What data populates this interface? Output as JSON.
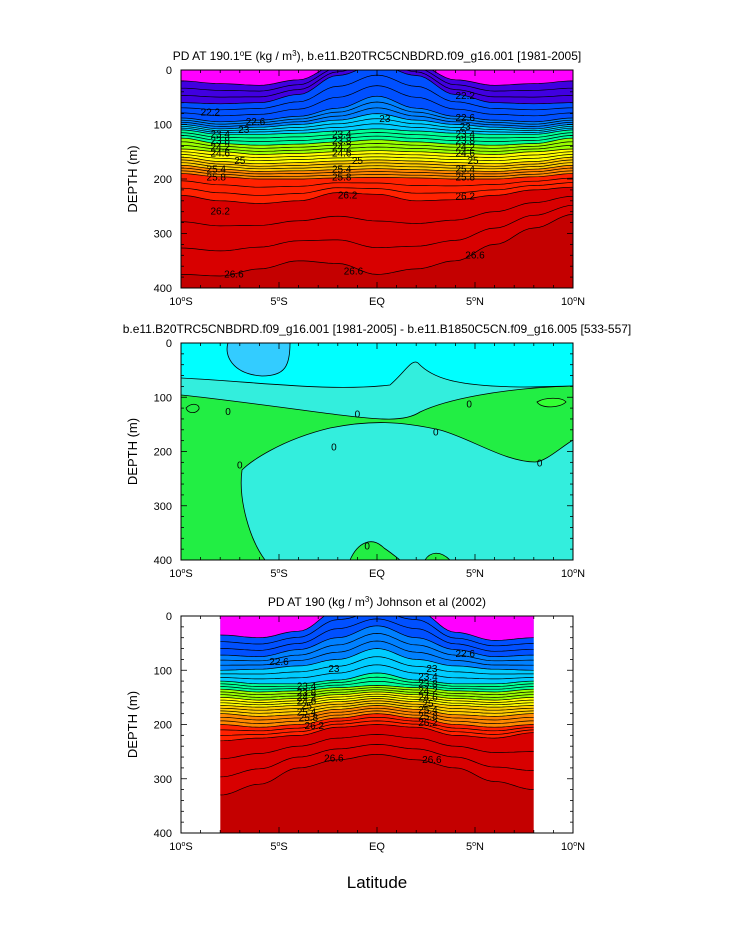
{
  "figure": {
    "xlabel": "Latitude"
  },
  "colors": {
    "frame": "#000000",
    "diff_low": "#00ffff",
    "diff_mid": "#33eedd",
    "diff_green": "#22ee44",
    "diff_light": "#33ccff"
  },
  "chart_data": [
    {
      "type": "contour",
      "title_parts": [
        "PD AT 190.1",
        "o",
        "E (kg / m",
        "3",
        "), b.e11.B20TRC5CNBDRD.f09_g16.001 [1981-2005]"
      ],
      "ylabel": "DEPTH (m)",
      "xlim": [
        -10,
        10
      ],
      "ylim": [
        0,
        400
      ],
      "data_xlim": [
        -10,
        10
      ],
      "x_ticks": [
        {
          "value": -10,
          "num": "10",
          "deg": "o",
          "hem": "S"
        },
        {
          "value": -5,
          "num": "5",
          "deg": "o",
          "hem": "S"
        },
        {
          "value": 0,
          "num": "EQ",
          "deg": "",
          "hem": ""
        },
        {
          "value": 5,
          "num": "5",
          "deg": "o",
          "hem": "N"
        },
        {
          "value": 10,
          "num": "10",
          "deg": "o",
          "hem": "N"
        }
      ],
      "y_ticks": [
        0,
        100,
        200,
        300,
        400
      ],
      "levels": [
        20.4,
        20.8,
        21.2,
        21.6,
        22.0,
        22.2,
        22.6,
        23.0,
        23.2,
        23.4,
        23.6,
        23.8,
        24.0,
        24.2,
        24.4,
        24.6,
        24.8,
        25.0,
        25.2,
        25.4,
        25.6,
        25.8,
        26.0,
        26.2,
        26.4,
        26.6
      ],
      "fill_colors": [
        "#ff00ff",
        "#e000f0",
        "#b000e8",
        "#7a00e0",
        "#4000e0",
        "#0020f0",
        "#0050ff",
        "#0080ff",
        "#00aaff",
        "#00ccff",
        "#00e6f0",
        "#00ffcc",
        "#00ff99",
        "#33ff33",
        "#66ff00",
        "#99ff00",
        "#ccff00",
        "#ffff00",
        "#ffee00",
        "#ffcc00",
        "#ffaa00",
        "#ff8800",
        "#ff5500",
        "#ff2200",
        "#ee0000",
        "#d80000",
        "#c40000"
      ],
      "control_x": [
        -10,
        -8,
        -6,
        -4,
        -2,
        0,
        2,
        4,
        6,
        8,
        10
      ],
      "contours": [
        {
          "level": 21.6,
          "depth": [
            20,
            25,
            28,
            18,
            -10,
            -40,
            -10,
            18,
            28,
            25,
            20
          ]
        },
        {
          "level": 22.0,
          "depth": [
            60,
            62,
            60,
            45,
            10,
            -10,
            10,
            45,
            60,
            62,
            60
          ]
        },
        {
          "level": 22.6,
          "depth": [
            88,
            95,
            92,
            85,
            70,
            48,
            70,
            85,
            92,
            95,
            88
          ]
        },
        {
          "level": 23.0,
          "depth": [
            100,
            108,
            105,
            100,
            92,
            80,
            92,
            100,
            105,
            108,
            100
          ]
        },
        {
          "level": 23.4,
          "depth": [
            110,
            118,
            118,
            116,
            112,
            108,
            112,
            116,
            118,
            118,
            110
          ]
        },
        {
          "level": 24.0,
          "depth": [
            125,
            135,
            138,
            136,
            132,
            128,
            132,
            136,
            138,
            135,
            125
          ]
        },
        {
          "level": 24.6,
          "depth": [
            145,
            150,
            155,
            153,
            150,
            148,
            150,
            153,
            155,
            150,
            145
          ]
        },
        {
          "level": 25.0,
          "depth": [
            160,
            168,
            172,
            170,
            167,
            165,
            167,
            170,
            172,
            168,
            160
          ]
        },
        {
          "level": 25.4,
          "depth": [
            175,
            182,
            186,
            185,
            183,
            181,
            183,
            185,
            186,
            182,
            175
          ]
        },
        {
          "level": 25.8,
          "depth": [
            190,
            196,
            200,
            200,
            198,
            197,
            198,
            200,
            200,
            196,
            190
          ]
        },
        {
          "level": 26.2,
          "depth": [
            230,
            240,
            245,
            240,
            225,
            228,
            240,
            238,
            230,
            220,
            215
          ]
        },
        {
          "level": 26.6,
          "depth": [
            375,
            378,
            365,
            350,
            355,
            375,
            365,
            350,
            320,
            290,
            265
          ]
        }
      ],
      "contour_labels": [
        {
          "text": "22.2",
          "lat": -8.5,
          "depth": 78
        },
        {
          "text": "22.6",
          "lat": -6.2,
          "depth": 95
        },
        {
          "text": "23",
          "lat": -6.8,
          "depth": 110
        },
        {
          "text": "23.4",
          "lat": -8.0,
          "depth": 118
        },
        {
          "text": "23.8",
          "lat": -8.0,
          "depth": 130
        },
        {
          "text": "24.2",
          "lat": -8.0,
          "depth": 142
        },
        {
          "text": "24.6",
          "lat": -8.0,
          "depth": 153
        },
        {
          "text": "25",
          "lat": -7.0,
          "depth": 167
        },
        {
          "text": "25.4",
          "lat": -8.2,
          "depth": 183
        },
        {
          "text": "25.8",
          "lat": -8.2,
          "depth": 197
        },
        {
          "text": "26.2",
          "lat": -8.0,
          "depth": 260
        },
        {
          "text": "26.6",
          "lat": -7.3,
          "depth": 375
        },
        {
          "text": "23",
          "lat": 0.4,
          "depth": 90
        },
        {
          "text": "23.4",
          "lat": -1.8,
          "depth": 118
        },
        {
          "text": "23.8",
          "lat": -1.8,
          "depth": 130
        },
        {
          "text": "24.2",
          "lat": -1.8,
          "depth": 142
        },
        {
          "text": "24.6",
          "lat": -1.8,
          "depth": 153
        },
        {
          "text": "25",
          "lat": -1.0,
          "depth": 167
        },
        {
          "text": "25.4",
          "lat": -1.8,
          "depth": 183
        },
        {
          "text": "25.8",
          "lat": -1.8,
          "depth": 197
        },
        {
          "text": "26.2",
          "lat": -1.5,
          "depth": 230
        },
        {
          "text": "26.6",
          "lat": -1.2,
          "depth": 370
        },
        {
          "text": "22.2",
          "lat": 4.5,
          "depth": 48
        },
        {
          "text": "22.6",
          "lat": 4.5,
          "depth": 88
        },
        {
          "text": "23",
          "lat": 4.5,
          "depth": 105
        },
        {
          "text": "23.4",
          "lat": 4.5,
          "depth": 118
        },
        {
          "text": "23.8",
          "lat": 4.5,
          "depth": 130
        },
        {
          "text": "24.2",
          "lat": 4.5,
          "depth": 142
        },
        {
          "text": "24.6",
          "lat": 4.5,
          "depth": 153
        },
        {
          "text": "25",
          "lat": 4.9,
          "depth": 167
        },
        {
          "text": "25.4",
          "lat": 4.5,
          "depth": 183
        },
        {
          "text": "25.8",
          "lat": 4.5,
          "depth": 197
        },
        {
          "text": "26.2",
          "lat": 4.5,
          "depth": 232
        },
        {
          "text": "26.6",
          "lat": 5.0,
          "depth": 340
        }
      ]
    },
    {
      "type": "contour",
      "title_parts": [
        "b.e11.B20TRC5CNBDRD.f09_g16.001 [1981-2005] - b.e11.B1850C5CN.f09_g16.005 [533-557]"
      ],
      "ylabel": "DEPTH (m)",
      "xlim": [
        -10,
        10
      ],
      "ylim": [
        0,
        400
      ],
      "data_xlim": [
        -10,
        10
      ],
      "x_ticks": [
        {
          "value": -10,
          "num": "10",
          "deg": "o",
          "hem": "S"
        },
        {
          "value": -5,
          "num": "5",
          "deg": "o",
          "hem": "S"
        },
        {
          "value": 0,
          "num": "EQ",
          "deg": "",
          "hem": ""
        },
        {
          "value": 5,
          "num": "5",
          "deg": "o",
          "hem": "N"
        },
        {
          "value": 10,
          "num": "10",
          "deg": "o",
          "hem": "N"
        }
      ],
      "y_ticks": [
        0,
        100,
        200,
        300,
        400
      ],
      "contour_labels": [
        {
          "text": "0",
          "lat": -7.6,
          "depth": 127
        },
        {
          "text": "0",
          "lat": -1.0,
          "depth": 132
        },
        {
          "text": "0",
          "lat": 3.0,
          "depth": 165
        },
        {
          "text": "0",
          "lat": 4.7,
          "depth": 113
        },
        {
          "text": "0",
          "lat": -2.2,
          "depth": 193
        },
        {
          "text": "0",
          "lat": 8.3,
          "depth": 222
        },
        {
          "text": "0",
          "lat": -7.0,
          "depth": 226
        },
        {
          "text": "0",
          "lat": -0.5,
          "depth": 375
        }
      ]
    },
    {
      "type": "contour",
      "title_parts": [
        "PD AT 190 (kg / m",
        "3",
        ") Johnson et al (2002)"
      ],
      "ylabel": "DEPTH (m)",
      "xlim": [
        -10,
        10
      ],
      "ylim": [
        0,
        400
      ],
      "data_xlim": [
        -8,
        8
      ],
      "x_ticks": [
        {
          "value": -10,
          "num": "10",
          "deg": "o",
          "hem": "S"
        },
        {
          "value": -5,
          "num": "5",
          "deg": "o",
          "hem": "S"
        },
        {
          "value": 0,
          "num": "EQ",
          "deg": "",
          "hem": ""
        },
        {
          "value": 5,
          "num": "5",
          "deg": "o",
          "hem": "N"
        },
        {
          "value": 10,
          "num": "10",
          "deg": "o",
          "hem": "N"
        }
      ],
      "y_ticks": [
        0,
        100,
        200,
        300,
        400
      ],
      "levels": [
        20.4,
        20.8,
        21.2,
        21.6,
        22.0,
        22.2,
        22.6,
        23.0,
        23.2,
        23.4,
        23.6,
        23.8,
        24.0,
        24.2,
        24.4,
        24.6,
        24.8,
        25.0,
        25.2,
        25.4,
        25.6,
        25.8,
        26.0,
        26.2,
        26.4,
        26.6
      ],
      "fill_colors": [
        "#ff00ff",
        "#e000f0",
        "#b000e8",
        "#7a00e0",
        "#4000e0",
        "#0020f0",
        "#0050ff",
        "#0080ff",
        "#00aaff",
        "#00ccff",
        "#00e6f0",
        "#00ffcc",
        "#00ff99",
        "#33ff33",
        "#66ff00",
        "#99ff00",
        "#ccff00",
        "#ffff00",
        "#ffee00",
        "#ffcc00",
        "#ffaa00",
        "#ff8800",
        "#ff5500",
        "#ff2200",
        "#ee0000",
        "#d80000",
        "#c40000"
      ],
      "control_x": [
        -8,
        -6,
        -4,
        -2,
        0,
        2,
        4,
        6,
        8
      ],
      "contours": [
        {
          "level": 22.0,
          "depth": [
            35,
            40,
            28,
            -10,
            -20,
            -10,
            30,
            45,
            40
          ]
        },
        {
          "level": 22.6,
          "depth": [
            72,
            75,
            62,
            40,
            18,
            40,
            62,
            75,
            72
          ]
        },
        {
          "level": 23.0,
          "depth": [
            100,
            98,
            92,
            80,
            60,
            80,
            92,
            98,
            100
          ]
        },
        {
          "level": 23.4,
          "depth": [
            120,
            125,
            125,
            118,
            105,
            118,
            125,
            125,
            120
          ]
        },
        {
          "level": 24.0,
          "depth": [
            135,
            140,
            138,
            132,
            128,
            132,
            138,
            140,
            135
          ]
        },
        {
          "level": 24.6,
          "depth": [
            150,
            155,
            152,
            145,
            140,
            145,
            152,
            155,
            150
          ]
        },
        {
          "level": 25.0,
          "depth": [
            165,
            168,
            165,
            158,
            152,
            158,
            165,
            168,
            165
          ]
        },
        {
          "level": 25.4,
          "depth": [
            180,
            185,
            182,
            172,
            165,
            172,
            182,
            185,
            180
          ]
        },
        {
          "level": 25.8,
          "depth": [
            200,
            205,
            200,
            188,
            180,
            188,
            200,
            205,
            200
          ]
        },
        {
          "level": 26.2,
          "depth": [
            230,
            225,
            220,
            205,
            200,
            205,
            220,
            225,
            215
          ]
        },
        {
          "level": 26.6,
          "depth": [
            330,
            310,
            280,
            265,
            255,
            265,
            280,
            305,
            320
          ]
        }
      ],
      "contour_labels": [
        {
          "text": "22.6",
          "lat": -5.0,
          "depth": 85
        },
        {
          "text": "23",
          "lat": -2.2,
          "depth": 98
        },
        {
          "text": "23.4",
          "lat": -3.6,
          "depth": 130
        },
        {
          "text": "23.8",
          "lat": -3.6,
          "depth": 142
        },
        {
          "text": "24.2",
          "lat": -3.6,
          "depth": 150
        },
        {
          "text": "24.6",
          "lat": -3.6,
          "depth": 158
        },
        {
          "text": "25",
          "lat": -3.6,
          "depth": 167
        },
        {
          "text": "25.4",
          "lat": -3.6,
          "depth": 178
        },
        {
          "text": "25.8",
          "lat": -3.5,
          "depth": 188
        },
        {
          "text": "26.2",
          "lat": -3.2,
          "depth": 203
        },
        {
          "text": "26.6",
          "lat": -2.2,
          "depth": 263
        },
        {
          "text": "22.6",
          "lat": 4.5,
          "depth": 70
        },
        {
          "text": "23",
          "lat": 2.8,
          "depth": 98
        },
        {
          "text": "23.4",
          "lat": 2.6,
          "depth": 112
        },
        {
          "text": "23.8",
          "lat": 2.6,
          "depth": 125
        },
        {
          "text": "24.2",
          "lat": 2.6,
          "depth": 138
        },
        {
          "text": "24.6",
          "lat": 2.6,
          "depth": 150
        },
        {
          "text": "25",
          "lat": 2.6,
          "depth": 162
        },
        {
          "text": "25.4",
          "lat": 2.6,
          "depth": 173
        },
        {
          "text": "25.8",
          "lat": 2.6,
          "depth": 185
        },
        {
          "text": "26.2",
          "lat": 2.6,
          "depth": 197
        },
        {
          "text": "26.6",
          "lat": 2.8,
          "depth": 265
        }
      ]
    }
  ]
}
